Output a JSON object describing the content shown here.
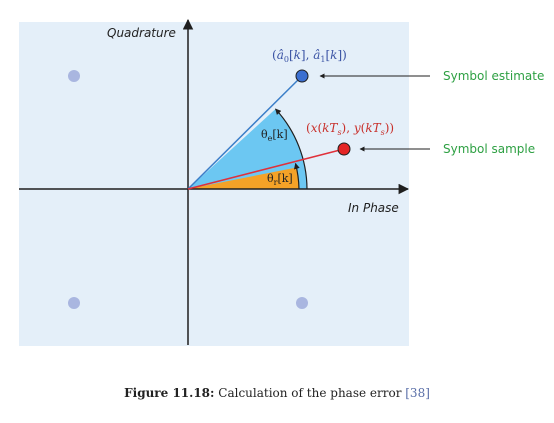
{
  "colors": {
    "plot_background": "#e4eff9",
    "axis": "#1f1f1f",
    "constellation_point": "#a9b6e0",
    "estimate_point": "#3b6fd0",
    "estimate_line": "#3b7ec8",
    "estimate_wedge": "#6cc7f2",
    "sample_point": "#e42525",
    "sample_line": "#e0303a",
    "sample_wedge": "#f4a227",
    "annotation_green": "#2ea043",
    "estimate_label": "#3a53a4",
    "sample_label": "#c8302b",
    "caption_ref": "#5a6fa8"
  },
  "axes": {
    "vertical_label": "Quadrature",
    "horizontal_label": "In Phase"
  },
  "points": {
    "estimate_label_latex": "(â_0[k], â_1[k])",
    "sample_label_latex": "(x(kT_s), y(kT_s))"
  },
  "angles": {
    "theta_e_base": "θ",
    "theta_e_sub": "e",
    "theta_e_tail": "[k]",
    "theta_r_base": "θ",
    "theta_r_sub": "r",
    "theta_r_tail": "[k]"
  },
  "annotations": {
    "symbol_estimate": "Symbol estimate",
    "symbol_sample": "Symbol sample"
  },
  "caption": {
    "label": "Figure 11.18:",
    "text": " Calculation of the phase error ",
    "reference": "[38]"
  }
}
